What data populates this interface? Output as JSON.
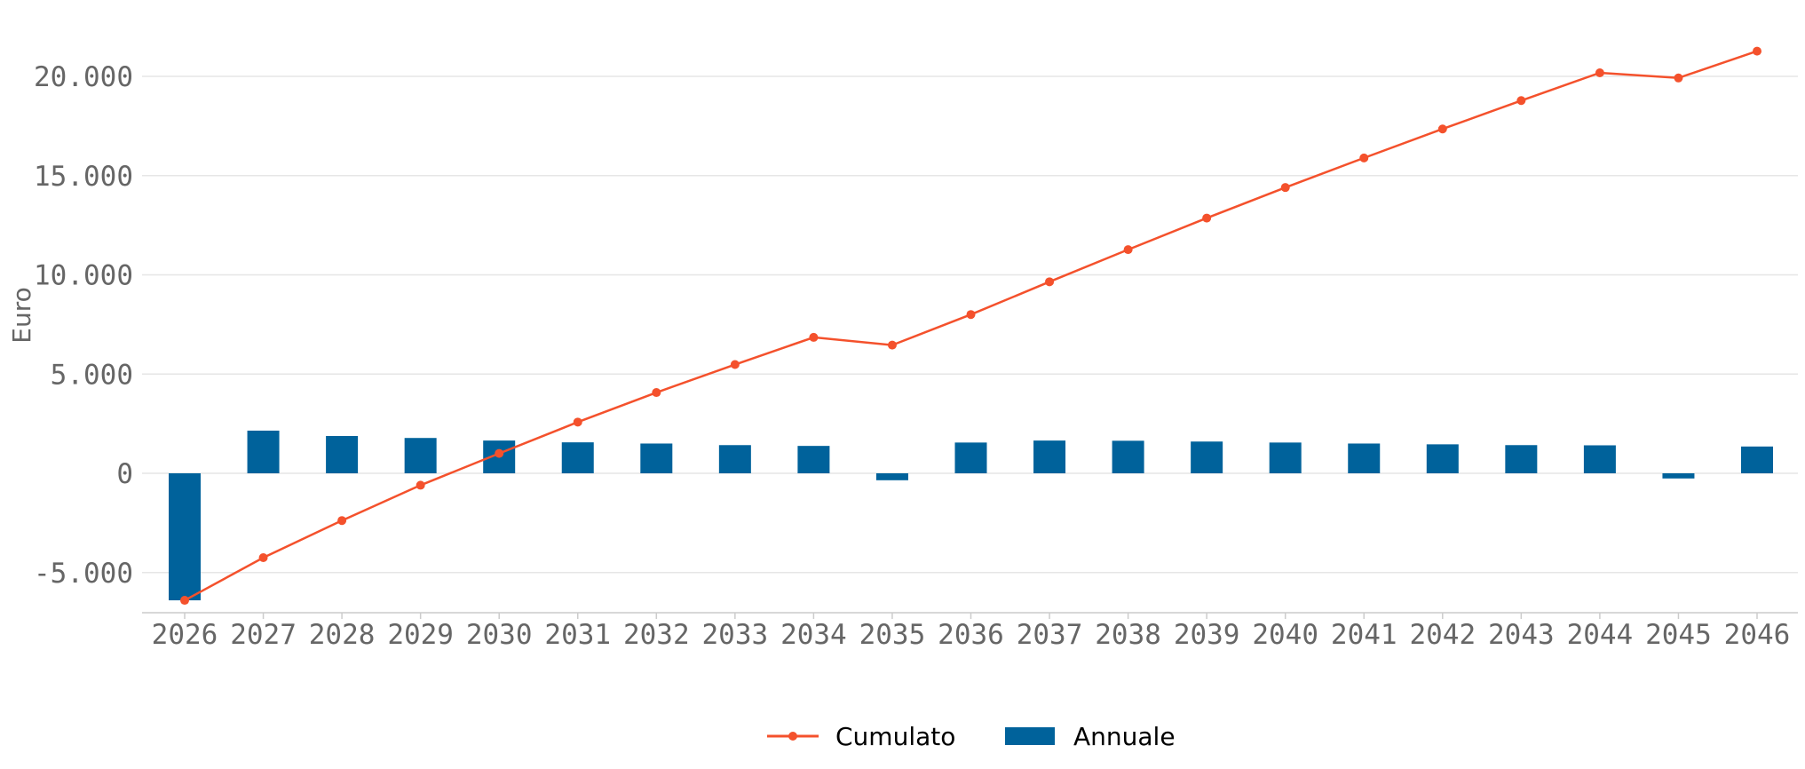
{
  "chart_data": {
    "type": "bar",
    "ylabel": "Euro",
    "ylim": [
      -7000,
      22500
    ],
    "yticks": [
      -5000,
      0,
      5000,
      10000,
      15000,
      20000
    ],
    "ytick_labels": [
      "-5.000",
      "0",
      "5.000",
      "10.000",
      "15.000",
      "20.000"
    ],
    "grid": "horizontal",
    "legend_position": "bottom-center",
    "categories": [
      "2026",
      "2027",
      "2028",
      "2029",
      "2030",
      "2031",
      "2032",
      "2033",
      "2034",
      "2035",
      "2036",
      "2037",
      "2038",
      "2039",
      "2040",
      "2041",
      "2042",
      "2043",
      "2044",
      "2045",
      "2046"
    ],
    "series": [
      {
        "name": "Cumulato",
        "type": "line",
        "color": "#f4512c",
        "values": [
          -6400,
          -4250,
          -2380,
          -600,
          1000,
          2580,
          4070,
          5480,
          6850,
          6460,
          8000,
          9650,
          11270,
          12860,
          14400,
          15890,
          17350,
          18780,
          20180,
          19920,
          21270
        ]
      },
      {
        "name": "Annuale",
        "type": "bar",
        "color": "#00629b",
        "values": [
          -6400,
          2150,
          1880,
          1780,
          1650,
          1560,
          1500,
          1420,
          1380,
          -350,
          1550,
          1650,
          1640,
          1600,
          1550,
          1500,
          1460,
          1420,
          1410,
          -260,
          1350
        ]
      }
    ]
  }
}
